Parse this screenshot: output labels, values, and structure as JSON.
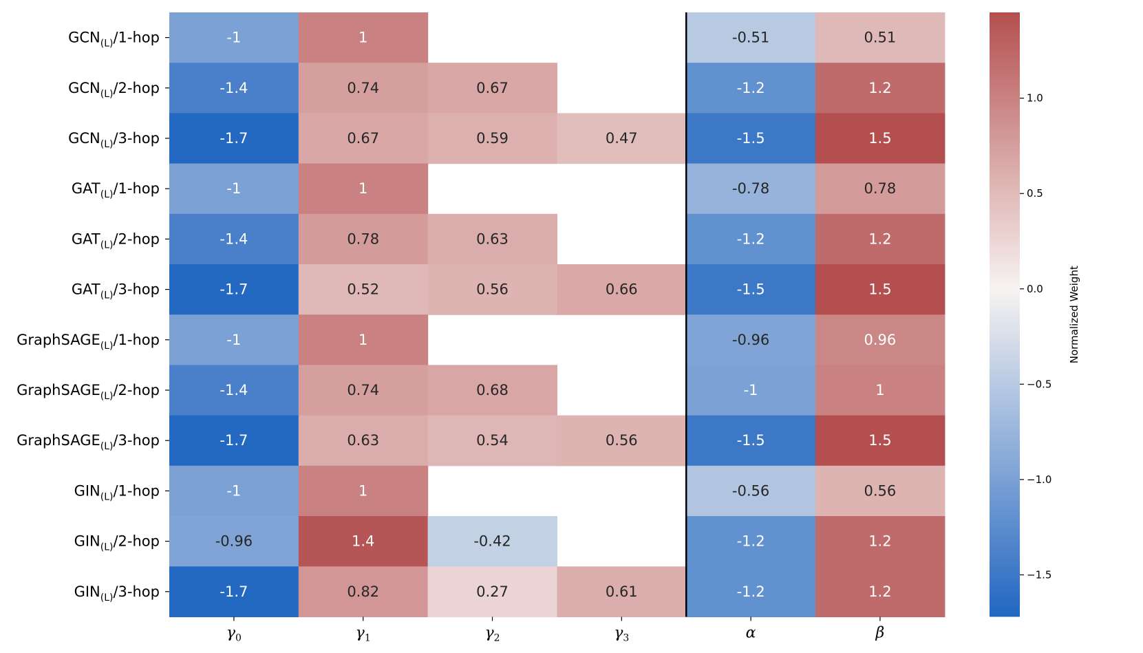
{
  "chart_data": {
    "type": "heatmap",
    "title": "",
    "xlabel": "",
    "ylabel": "",
    "columns": [
      {
        "base": "γ",
        "sub": "0"
      },
      {
        "base": "γ",
        "sub": "1"
      },
      {
        "base": "γ",
        "sub": "2"
      },
      {
        "base": "γ",
        "sub": "3"
      },
      {
        "base": "α",
        "sub": ""
      },
      {
        "base": "β",
        "sub": ""
      }
    ],
    "rows": [
      {
        "model": "GCN",
        "sub": "(L)",
        "hop": "/1-hop"
      },
      {
        "model": "GCN",
        "sub": "(L)",
        "hop": "/2-hop"
      },
      {
        "model": "GCN",
        "sub": "(L)",
        "hop": "/3-hop"
      },
      {
        "model": "GAT",
        "sub": "(L)",
        "hop": "/1-hop"
      },
      {
        "model": "GAT",
        "sub": "(L)",
        "hop": "/2-hop"
      },
      {
        "model": "GAT",
        "sub": "(L)",
        "hop": "/3-hop"
      },
      {
        "model": "GraphSAGE",
        "sub": "(L)",
        "hop": "/1-hop"
      },
      {
        "model": "GraphSAGE",
        "sub": "(L)",
        "hop": "/2-hop"
      },
      {
        "model": "GraphSAGE",
        "sub": "(L)",
        "hop": "/3-hop"
      },
      {
        "model": "GIN",
        "sub": "(L)",
        "hop": "/1-hop"
      },
      {
        "model": "GIN",
        "sub": "(L)",
        "hop": "/2-hop"
      },
      {
        "model": "GIN",
        "sub": "(L)",
        "hop": "/3-hop"
      }
    ],
    "values": [
      [
        -1,
        1,
        null,
        null,
        -0.51,
        0.51
      ],
      [
        -1.4,
        0.74,
        0.67,
        null,
        -1.2,
        1.2
      ],
      [
        -1.7,
        0.67,
        0.59,
        0.47,
        -1.5,
        1.5
      ],
      [
        -1,
        1,
        null,
        null,
        -0.78,
        0.78
      ],
      [
        -1.4,
        0.78,
        0.63,
        null,
        -1.2,
        1.2
      ],
      [
        -1.7,
        0.52,
        0.56,
        0.66,
        -1.5,
        1.5
      ],
      [
        -1,
        1,
        null,
        null,
        -0.96,
        0.96
      ],
      [
        -1.4,
        0.74,
        0.68,
        null,
        -1,
        1
      ],
      [
        -1.7,
        0.63,
        0.54,
        0.56,
        -1.5,
        1.5
      ],
      [
        -1,
        1,
        null,
        null,
        -0.56,
        0.56
      ],
      [
        -0.96,
        1.4,
        -0.42,
        null,
        -1.2,
        1.2
      ],
      [
        -1.7,
        0.82,
        0.27,
        0.61,
        -1.2,
        1.2
      ]
    ],
    "divider_after_column": 3,
    "colorbar": {
      "label": "Normalized Weight",
      "range": [
        -1.72,
        1.45
      ],
      "ticks": [
        1.0,
        0.5,
        0.0,
        -0.5,
        -1.0,
        -1.5
      ],
      "tick_labels": [
        "1.0",
        "0.5",
        "0.0",
        "−0.5",
        "−1.0",
        "−1.5"
      ],
      "colormap": "vlag",
      "low_color": "#2166c0",
      "mid_color": "#f7f3f1",
      "high_color": "#b44f4f"
    }
  }
}
